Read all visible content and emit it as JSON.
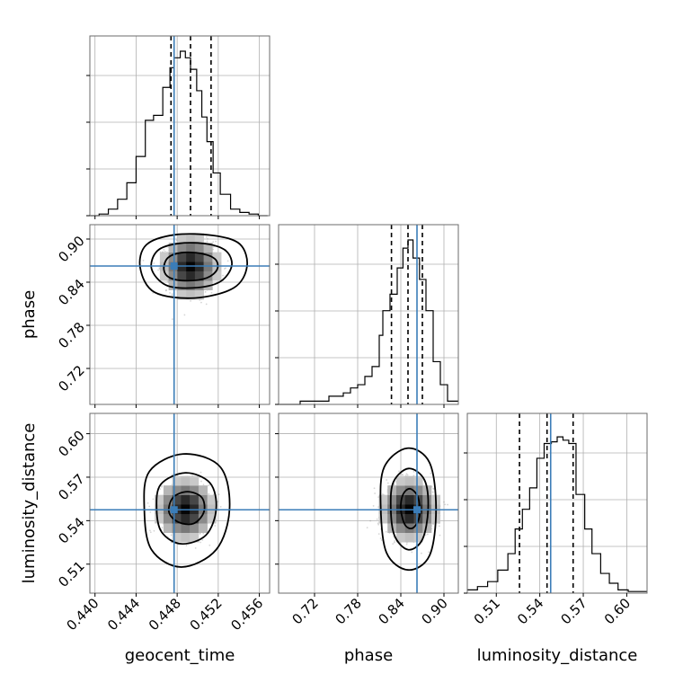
{
  "chart_data": {
    "type": "corner",
    "parameters": [
      "geocent_time",
      "phase",
      "luminosity_distance"
    ],
    "grid": true,
    "colors": {
      "truth": "#3b7db8",
      "hist": "#000000",
      "grid": "#b0b0b0",
      "scatter": "#8a8a8a"
    },
    "ranges": {
      "geocent_time": [
        0.4395,
        0.457
      ],
      "phase": [
        0.67,
        0.92
      ],
      "luminosity_distance": [
        0.49,
        0.614
      ]
    },
    "ticks": {
      "geocent_time": [
        "0.440",
        "0.444",
        "0.448",
        "0.452",
        "0.456"
      ],
      "phase": [
        "0.72",
        "0.78",
        "0.84",
        "0.90"
      ],
      "luminosity_distance": [
        "0.51",
        "0.54",
        "0.57",
        "0.60"
      ]
    },
    "truths": {
      "geocent_time": 0.4477,
      "phase": 0.8625,
      "luminosity_distance": 0.5475
    },
    "quantiles": {
      "geocent_time": [
        0.4474,
        0.4493,
        0.4513
      ],
      "phase": [
        0.827,
        0.85,
        0.87
      ],
      "luminosity_distance": [
        0.526,
        0.545,
        0.563
      ]
    },
    "histograms": {
      "geocent_time": {
        "edges": [
          0.4395,
          0.4404,
          0.4413,
          0.4422,
          0.4431,
          0.444,
          0.4449,
          0.4457,
          0.4466,
          0.4473,
          0.4477,
          0.4483,
          0.4488,
          0.4493,
          0.4499,
          0.4504,
          0.4509,
          0.4515,
          0.4522,
          0.4532,
          0.4541,
          0.455,
          0.4559,
          0.4568
        ],
        "counts": [
          0.0,
          0.01,
          0.04,
          0.1,
          0.2,
          0.36,
          0.58,
          0.61,
          0.78,
          0.9,
          0.96,
          1.0,
          0.96,
          0.89,
          0.76,
          0.6,
          0.45,
          0.26,
          0.13,
          0.04,
          0.02,
          0.01,
          0.0
        ]
      },
      "phase": {
        "edges": [
          0.67,
          0.7,
          0.74,
          0.76,
          0.77,
          0.78,
          0.79,
          0.8,
          0.81,
          0.815,
          0.825,
          0.835,
          0.843,
          0.85,
          0.857,
          0.866,
          0.875,
          0.885,
          0.895,
          0.905,
          0.92
        ],
        "counts": [
          0.0,
          0.02,
          0.05,
          0.07,
          0.1,
          0.12,
          0.17,
          0.23,
          0.42,
          0.57,
          0.67,
          0.83,
          0.95,
          1.0,
          0.89,
          0.76,
          0.57,
          0.26,
          0.12,
          0.02
        ]
      },
      "luminosity_distance": {
        "edges": [
          0.49,
          0.497,
          0.504,
          0.511,
          0.518,
          0.523,
          0.528,
          0.533,
          0.538,
          0.543,
          0.548,
          0.552,
          0.556,
          0.56,
          0.565,
          0.571,
          0.576,
          0.582,
          0.588,
          0.594,
          0.601,
          0.614
        ],
        "counts": [
          0.02,
          0.04,
          0.07,
          0.14,
          0.24,
          0.39,
          0.51,
          0.64,
          0.82,
          0.91,
          0.92,
          0.95,
          0.93,
          0.91,
          0.6,
          0.39,
          0.24,
          0.12,
          0.06,
          0.02,
          0.01
        ]
      }
    },
    "density_peaks": {
      "geocent_time_vs_phase": {
        "x": 0.4493,
        "y": 0.862
      },
      "geocent_time_vs_luminosity_distance": {
        "x": 0.4488,
        "y": 0.548
      },
      "phase_vs_luminosity_distance": {
        "x": 0.852,
        "y": 0.548
      }
    },
    "contours": {
      "geocent_time_vs_phase": [
        [
          [
            0.4467,
            0.858
          ],
          [
            0.4471,
            0.874
          ],
          [
            0.4484,
            0.881
          ],
          [
            0.4503,
            0.88
          ],
          [
            0.4517,
            0.872
          ],
          [
            0.4519,
            0.858
          ],
          [
            0.4509,
            0.846
          ],
          [
            0.449,
            0.842
          ],
          [
            0.4473,
            0.846
          ]
        ],
        [
          [
            0.4455,
            0.859
          ],
          [
            0.4461,
            0.884
          ],
          [
            0.4482,
            0.894
          ],
          [
            0.451,
            0.893
          ],
          [
            0.4528,
            0.883
          ],
          [
            0.4533,
            0.862
          ],
          [
            0.4521,
            0.84
          ],
          [
            0.4495,
            0.832
          ],
          [
            0.4469,
            0.836
          ]
        ],
        [
          [
            0.4444,
            0.86
          ],
          [
            0.445,
            0.892
          ],
          [
            0.4478,
            0.906
          ],
          [
            0.4515,
            0.905
          ],
          [
            0.4541,
            0.893
          ],
          [
            0.4548,
            0.862
          ],
          [
            0.4535,
            0.832
          ],
          [
            0.4497,
            0.818
          ],
          [
            0.4458,
            0.826
          ]
        ]
      ],
      "geocent_time_vs_luminosity_distance": [
        [
          [
            0.4472,
            0.546
          ],
          [
            0.4476,
            0.556
          ],
          [
            0.449,
            0.56
          ],
          [
            0.4504,
            0.556
          ],
          [
            0.4506,
            0.546
          ],
          [
            0.4496,
            0.538
          ],
          [
            0.4481,
            0.539
          ]
        ],
        [
          [
            0.446,
            0.548
          ],
          [
            0.4464,
            0.565
          ],
          [
            0.4488,
            0.573
          ],
          [
            0.4512,
            0.566
          ],
          [
            0.4518,
            0.548
          ],
          [
            0.4508,
            0.53
          ],
          [
            0.4484,
            0.524
          ],
          [
            0.4465,
            0.532
          ]
        ],
        [
          [
            0.4448,
            0.548
          ],
          [
            0.4453,
            0.574
          ],
          [
            0.4486,
            0.586
          ],
          [
            0.4522,
            0.577
          ],
          [
            0.4531,
            0.548
          ],
          [
            0.4518,
            0.52
          ],
          [
            0.4484,
            0.508
          ],
          [
            0.4455,
            0.52
          ]
        ]
      ],
      "phase_vs_luminosity_distance": [
        [
          [
            0.84,
            0.548
          ],
          [
            0.843,
            0.558
          ],
          [
            0.853,
            0.562
          ],
          [
            0.864,
            0.556
          ],
          [
            0.866,
            0.543
          ],
          [
            0.857,
            0.535
          ],
          [
            0.846,
            0.537
          ]
        ],
        [
          [
            0.826,
            0.55
          ],
          [
            0.83,
            0.567
          ],
          [
            0.851,
            0.576
          ],
          [
            0.873,
            0.568
          ],
          [
            0.878,
            0.548
          ],
          [
            0.87,
            0.527
          ],
          [
            0.85,
            0.52
          ],
          [
            0.831,
            0.53
          ]
        ],
        [
          [
            0.812,
            0.55
          ],
          [
            0.817,
            0.577
          ],
          [
            0.849,
            0.59
          ],
          [
            0.88,
            0.58
          ],
          [
            0.889,
            0.548
          ],
          [
            0.88,
            0.516
          ],
          [
            0.85,
            0.506
          ],
          [
            0.82,
            0.518
          ]
        ]
      ]
    }
  }
}
